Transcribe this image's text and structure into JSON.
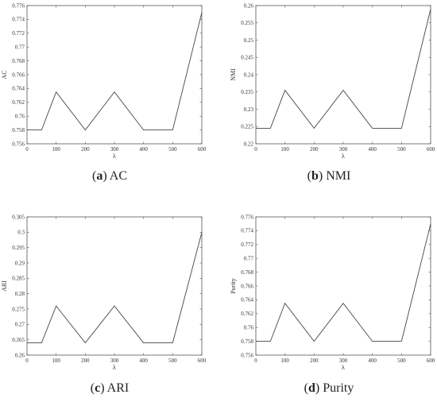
{
  "chart_data": [
    {
      "type": "line",
      "ylabel": "AC",
      "xlabel": "λ",
      "caption_letter": "(a)",
      "caption_name": "AC",
      "xlim": [
        0,
        600
      ],
      "ylim": [
        0.756,
        0.776
      ],
      "x_ticks": [
        0,
        100,
        200,
        300,
        400,
        500,
        600
      ],
      "y_ticks": [
        "0.756",
        "0.758",
        "0.76",
        "0.762",
        "0.764",
        "0.766",
        "0.768",
        "0.77",
        "0.772",
        "0.774",
        "0.776"
      ],
      "x": [
        0,
        50,
        100,
        200,
        300,
        400,
        500,
        600
      ],
      "y": [
        0.758,
        0.758,
        0.7635,
        0.758,
        0.7635,
        0.758,
        0.758,
        0.775
      ]
    },
    {
      "type": "line",
      "ylabel": "NMI",
      "xlabel": "λ",
      "caption_letter": "(b)",
      "caption_name": "NMI",
      "xlim": [
        0,
        600
      ],
      "ylim": [
        0.22,
        0.26
      ],
      "x_ticks": [
        0,
        100,
        200,
        300,
        400,
        500,
        600
      ],
      "y_ticks": [
        "0.22",
        "0.225",
        "0.23",
        "0.235",
        "0.24",
        "0.245",
        "0.25",
        "0.255",
        "0.26"
      ],
      "x": [
        0,
        50,
        100,
        200,
        300,
        400,
        500,
        600
      ],
      "y": [
        0.2245,
        0.2245,
        0.2355,
        0.2245,
        0.2355,
        0.2245,
        0.2245,
        0.259
      ]
    },
    {
      "type": "line",
      "ylabel": "ARI",
      "xlabel": "λ",
      "caption_letter": "(c)",
      "caption_name": "ARI",
      "xlim": [
        0,
        600
      ],
      "ylim": [
        0.26,
        0.305
      ],
      "x_ticks": [
        0,
        100,
        200,
        300,
        400,
        500,
        600
      ],
      "y_ticks": [
        "0.26",
        "0.265",
        "0.27",
        "0.275",
        "0.28",
        "0.285",
        "0.29",
        "0.295",
        "0.3",
        "0.305"
      ],
      "x": [
        0,
        50,
        100,
        200,
        300,
        400,
        500,
        600
      ],
      "y": [
        0.264,
        0.264,
        0.276,
        0.264,
        0.276,
        0.264,
        0.264,
        0.3
      ]
    },
    {
      "type": "line",
      "ylabel": "Purity",
      "xlabel": "λ",
      "caption_letter": "(d)",
      "caption_name": "Purity",
      "xlim": [
        0,
        600
      ],
      "ylim": [
        0.756,
        0.776
      ],
      "x_ticks": [
        0,
        100,
        200,
        300,
        400,
        500,
        600
      ],
      "y_ticks": [
        "0.756",
        "0.758",
        "0.76",
        "0.762",
        "0.764",
        "0.766",
        "0.768",
        "0.77",
        "0.772",
        "0.774",
        "0.776"
      ],
      "x": [
        0,
        50,
        100,
        200,
        300,
        400,
        500,
        600
      ],
      "y": [
        0.758,
        0.758,
        0.7635,
        0.758,
        0.7635,
        0.758,
        0.758,
        0.775
      ]
    }
  ]
}
